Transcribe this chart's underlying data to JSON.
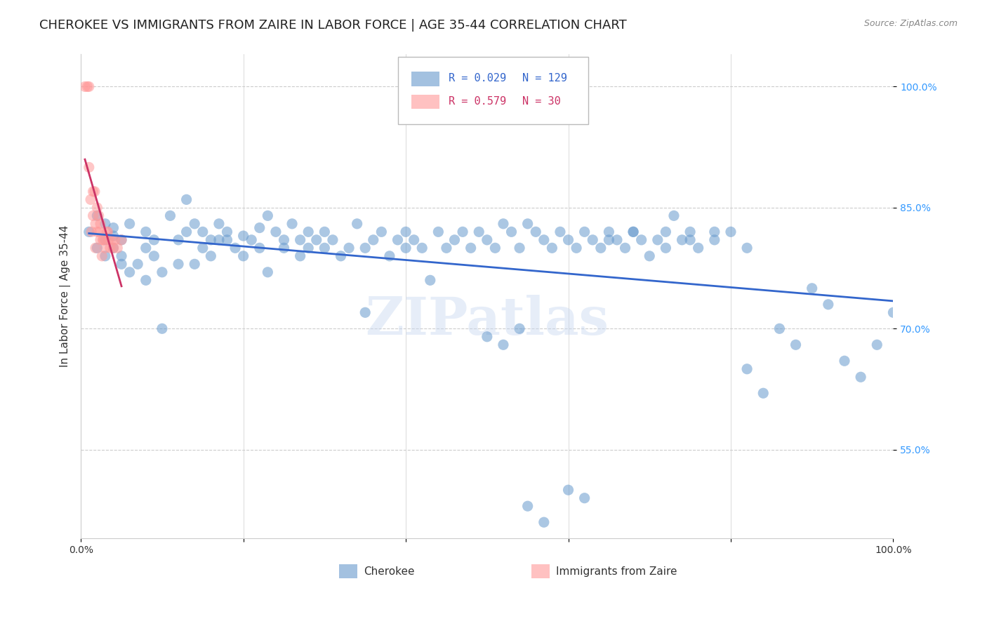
{
  "title": "CHEROKEE VS IMMIGRANTS FROM ZAIRE IN LABOR FORCE | AGE 35-44 CORRELATION CHART",
  "source": "Source: ZipAtlas.com",
  "ylabel": "In Labor Force | Age 35-44",
  "xlim": [
    0.0,
    1.0
  ],
  "ylim": [
    0.44,
    1.04
  ],
  "xticks": [
    0.0,
    0.2,
    0.4,
    0.6,
    0.8,
    1.0
  ],
  "xticklabels": [
    "0.0%",
    "",
    "",
    "",
    "",
    "100.0%"
  ],
  "ytick_positions": [
    0.55,
    0.7,
    0.85,
    1.0
  ],
  "yticklabels_right": [
    "55.0%",
    "70.0%",
    "85.0%",
    "100.0%"
  ],
  "grid_color": "#cccccc",
  "background_color": "#ffffff",
  "blue_color": "#6699cc",
  "pink_color": "#ff9999",
  "blue_line_color": "#3366cc",
  "pink_line_color": "#cc3366",
  "legend_R_blue": "0.029",
  "legend_N_blue": "129",
  "legend_R_pink": "0.579",
  "legend_N_pink": "30",
  "watermark": "ZIPatlas",
  "title_fontsize": 13,
  "label_fontsize": 11,
  "tick_fontsize": 10,
  "blue_scatter_x": [
    0.01,
    0.02,
    0.02,
    0.03,
    0.03,
    0.03,
    0.04,
    0.04,
    0.04,
    0.05,
    0.05,
    0.05,
    0.06,
    0.06,
    0.07,
    0.08,
    0.08,
    0.08,
    0.09,
    0.09,
    0.1,
    0.1,
    0.11,
    0.12,
    0.12,
    0.13,
    0.13,
    0.14,
    0.14,
    0.15,
    0.15,
    0.16,
    0.16,
    0.17,
    0.17,
    0.18,
    0.18,
    0.19,
    0.2,
    0.2,
    0.21,
    0.22,
    0.22,
    0.23,
    0.23,
    0.24,
    0.25,
    0.25,
    0.26,
    0.27,
    0.27,
    0.28,
    0.28,
    0.29,
    0.3,
    0.3,
    0.31,
    0.32,
    0.33,
    0.34,
    0.35,
    0.35,
    0.36,
    0.37,
    0.38,
    0.39,
    0.4,
    0.4,
    0.41,
    0.42,
    0.43,
    0.44,
    0.45,
    0.46,
    0.47,
    0.48,
    0.49,
    0.5,
    0.51,
    0.52,
    0.53,
    0.54,
    0.55,
    0.56,
    0.57,
    0.58,
    0.59,
    0.6,
    0.61,
    0.62,
    0.63,
    0.64,
    0.65,
    0.66,
    0.67,
    0.68,
    0.69,
    0.7,
    0.71,
    0.72,
    0.73,
    0.74,
    0.75,
    0.76,
    0.78,
    0.8,
    0.82,
    0.84,
    0.86,
    0.88,
    0.9,
    0.92,
    0.94,
    0.96,
    0.98,
    1.0,
    0.5,
    0.52,
    0.54,
    0.55,
    0.57,
    0.6,
    0.62,
    0.65,
    0.68,
    0.72,
    0.75,
    0.78,
    0.82
  ],
  "blue_scatter_y": [
    0.82,
    0.8,
    0.84,
    0.81,
    0.79,
    0.83,
    0.8,
    0.825,
    0.815,
    0.79,
    0.78,
    0.81,
    0.83,
    0.77,
    0.78,
    0.82,
    0.8,
    0.76,
    0.81,
    0.79,
    0.7,
    0.77,
    0.84,
    0.78,
    0.81,
    0.82,
    0.86,
    0.83,
    0.78,
    0.8,
    0.82,
    0.81,
    0.79,
    0.83,
    0.81,
    0.81,
    0.82,
    0.8,
    0.815,
    0.79,
    0.81,
    0.8,
    0.825,
    0.84,
    0.77,
    0.82,
    0.81,
    0.8,
    0.83,
    0.81,
    0.79,
    0.82,
    0.8,
    0.81,
    0.82,
    0.8,
    0.81,
    0.79,
    0.8,
    0.83,
    0.72,
    0.8,
    0.81,
    0.82,
    0.79,
    0.81,
    0.82,
    0.8,
    0.81,
    0.8,
    0.76,
    0.82,
    0.8,
    0.81,
    0.82,
    0.8,
    0.82,
    0.81,
    0.8,
    0.83,
    0.82,
    0.8,
    0.83,
    0.82,
    0.81,
    0.8,
    0.82,
    0.81,
    0.8,
    0.82,
    0.81,
    0.8,
    0.82,
    0.81,
    0.8,
    0.82,
    0.81,
    0.79,
    0.81,
    0.82,
    0.84,
    0.81,
    0.82,
    0.8,
    0.81,
    0.82,
    0.65,
    0.62,
    0.7,
    0.68,
    0.75,
    0.73,
    0.66,
    0.64,
    0.68,
    0.72,
    0.69,
    0.68,
    0.7,
    0.48,
    0.46,
    0.5,
    0.49,
    0.81,
    0.82,
    0.8,
    0.81,
    0.82,
    0.8
  ],
  "pink_scatter_x": [
    0.005,
    0.008,
    0.01,
    0.01,
    0.012,
    0.013,
    0.015,
    0.015,
    0.017,
    0.018,
    0.018,
    0.02,
    0.02,
    0.022,
    0.023,
    0.024,
    0.024,
    0.026,
    0.027,
    0.028,
    0.03,
    0.032,
    0.033,
    0.034,
    0.036,
    0.038,
    0.04,
    0.042,
    0.045,
    0.05
  ],
  "pink_scatter_y": [
    1.0,
    1.0,
    0.9,
    1.0,
    0.86,
    0.82,
    0.87,
    0.84,
    0.87,
    0.83,
    0.8,
    0.85,
    0.82,
    0.84,
    0.82,
    0.81,
    0.83,
    0.79,
    0.81,
    0.81,
    0.8,
    0.82,
    0.82,
    0.81,
    0.8,
    0.81,
    0.8,
    0.81,
    0.8,
    0.81
  ]
}
